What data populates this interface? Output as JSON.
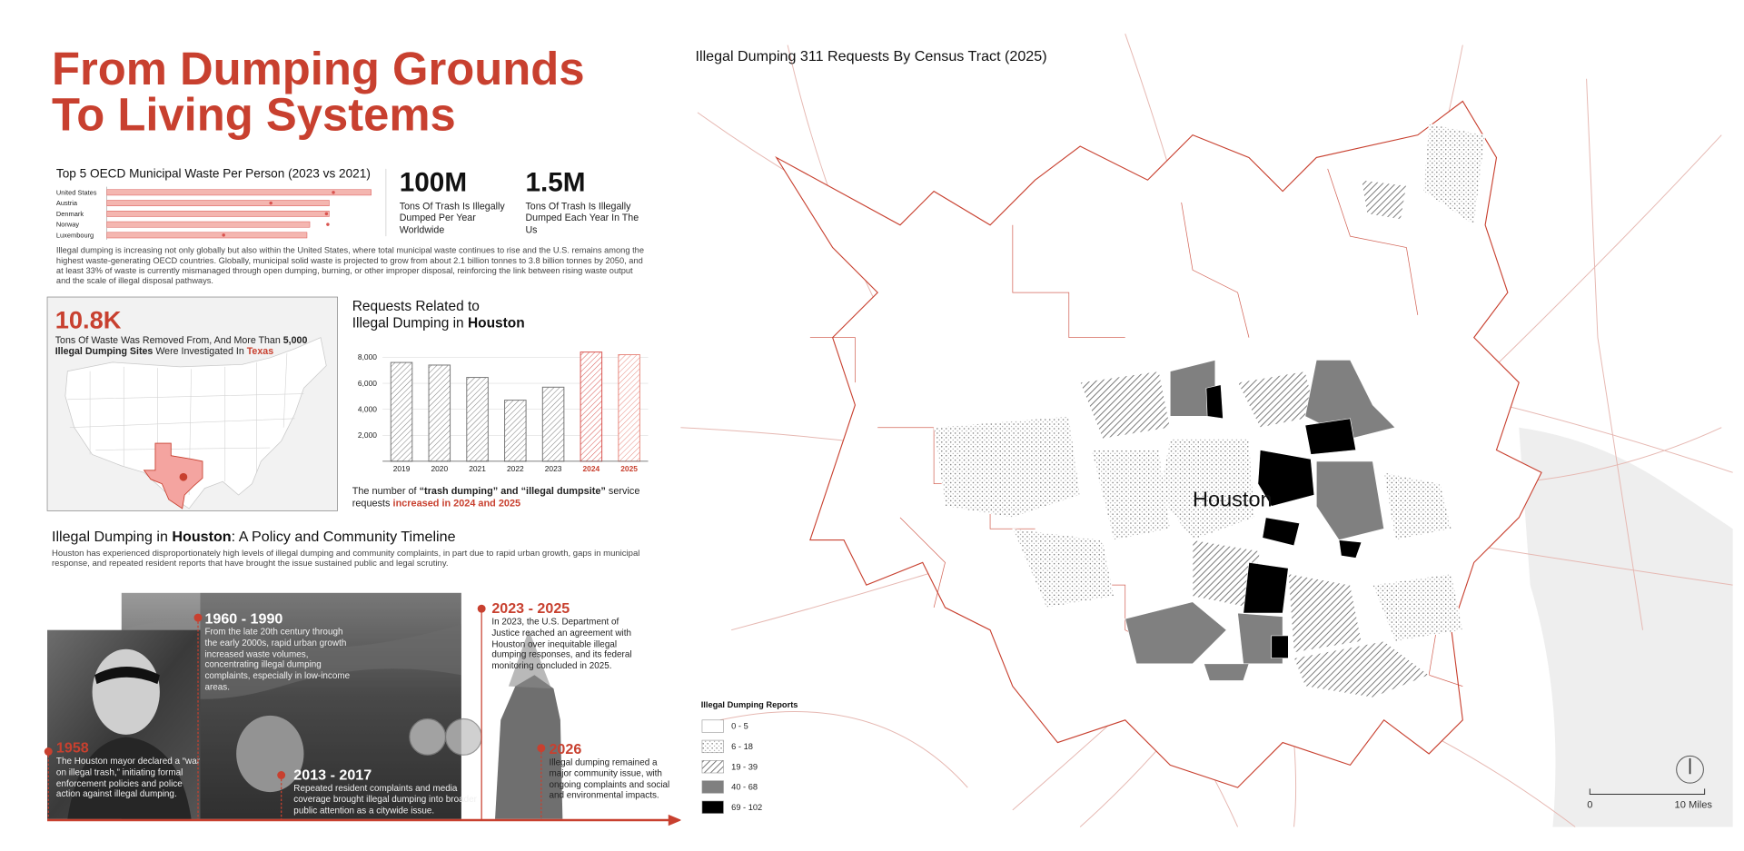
{
  "header": {
    "title_lines": [
      "From Dumping Grounds",
      "To Living Systems"
    ]
  },
  "chart_data": [
    {
      "type": "bar",
      "orientation": "horizontal",
      "title": "Top 5 OECD Municipal Waste Per Person (2023 vs 2021)",
      "categories": [
        "United States",
        "Austria",
        "Denmark",
        "Norway",
        "Luxembourg"
      ],
      "xlim": [
        0,
        1000
      ],
      "series": [
        {
          "color": "#f4b6b0",
          "values": [
            951,
            800,
            800,
            730,
            720
          ]
        },
        {
          "color": "#d9534f",
          "values": [
            815,
            590,
            790,
            795,
            420
          ]
        }
      ]
    },
    {
      "type": "bar",
      "title_lines": [
        "Requests Related to",
        "Illegal Dumping in ",
        "Houston"
      ],
      "categories": [
        "2019",
        "2020",
        "2021",
        "2022",
        "2023",
        "2024",
        "2025"
      ],
      "values": [
        7600,
        7400,
        6450,
        4700,
        5700,
        8400,
        8200
      ],
      "colors": [
        "#777777",
        "#777777",
        "#777777",
        "#777777",
        "#777777",
        "#d9534f",
        "#e88a80"
      ],
      "ylim": [
        0,
        9000
      ],
      "yticks": [
        {
          "value": 2000,
          "label": "2,000"
        },
        {
          "value": 4000,
          "label": "4,000"
        },
        {
          "value": 6000,
          "label": "6,000"
        },
        {
          "value": 8000,
          "label": "8,000"
        }
      ],
      "grid": true,
      "caption": [
        "The number of ",
        "“trash dumping” and “illegal dumpsite”",
        " service requests ",
        "increased in 2024 and 2025"
      ]
    }
  ],
  "stats": [
    {
      "value": "100M",
      "text": "Tons Of Trash Is Illegally Dumped Per Year Worldwide"
    },
    {
      "value": "1.5M",
      "text": "Tons Of Trash Is Illegally Dumped Each Year In The Us"
    }
  ],
  "intro": "Illegal dumping is increasing not only globally but also within the United States, where total municipal waste continues to rise and the U.S. remains among the highest waste-generating OECD countries. Globally, municipal solid waste is projected to grow from about 2.1 billion tonnes to 3.8 billion tonnes by 2050, and at least 33% of waste is currently mismanaged through open dumping, burning, or other improper disposal, reinforcing the link between rising waste output and the scale of illegal disposal pathways.",
  "texas": {
    "value": "10.8K",
    "text": [
      "Tons Of Waste Was Removed From, And More Than ",
      "5,000 Illegal Dumping Sites",
      " Were Investigated In ",
      "Texas"
    ]
  },
  "timeline": {
    "title": [
      "Illegal Dumping in ",
      "Houston",
      ": A Policy and Community Timeline"
    ],
    "description": "Houston has experienced disproportionately high levels of illegal dumping and community complaints, in part due to rapid urban growth, gaps in municipal response, and repeated resident reports that have brought the issue sustained public and legal scrutiny.",
    "events": [
      {
        "period": "1958",
        "text": "The Houston mayor declared a “war on illegal trash,” initiating formal enforcement policies and police action against illegal dumping."
      },
      {
        "period": "1960 - 1990",
        "text": "From the late 20th century through the early 2000s, rapid urban growth increased waste volumes, concentrating illegal dumping complaints, especially in low-income areas."
      },
      {
        "period": "2013 - 2017",
        "text": "Repeated resident complaints and media coverage brought illegal dumping into broader public attention as a citywide issue."
      },
      {
        "period": "2023 - 2025",
        "text": "In 2023, the U.S. Department of Justice reached an agreement with Houston over inequitable illegal dumping responses, and its federal monitoring concluded in 2025."
      },
      {
        "period": "2026",
        "text": "Illegal dumping remained a major community issue, with ongoing complaints and social and environmental impacts."
      }
    ]
  },
  "map": {
    "title": "Illegal Dumping 311 Requests By Census Tract (2025)",
    "city_label": "Houston",
    "legend_title": "Illegal Dumping Reports",
    "legend": [
      "0 - 5",
      "6 - 18",
      "19 - 39",
      "40 - 68",
      "69 - 102"
    ],
    "scale_labels": [
      "0",
      "10 Miles"
    ]
  }
}
